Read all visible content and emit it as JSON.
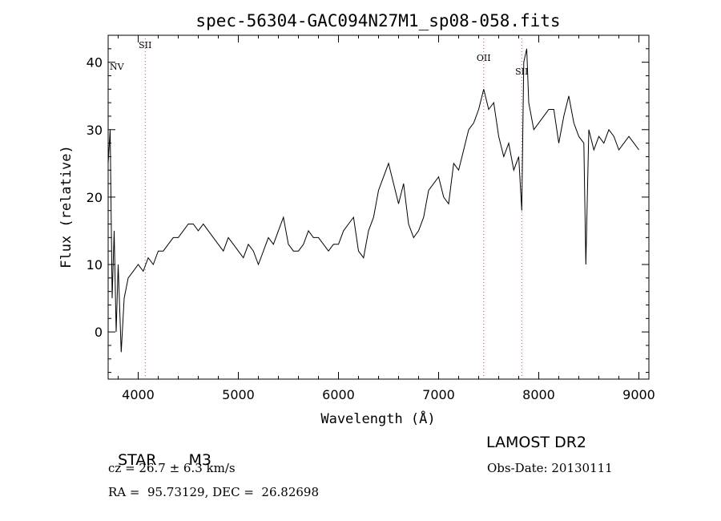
{
  "chart_data": {
    "type": "line",
    "title": "spec-56304-GAC094N27M1_sp08-058.fits",
    "xlabel": "Wavelength (Å)",
    "ylabel": "Flux (relative)",
    "xlim": [
      3700,
      9100
    ],
    "ylim": [
      -7,
      44
    ],
    "xticks": [
      4000,
      5000,
      6000,
      7000,
      8000,
      9000
    ],
    "yticks": [
      0,
      10,
      20,
      30,
      40
    ],
    "grid": false,
    "series": [
      {
        "color": "#000000",
        "x": [
          3700,
          3720,
          3740,
          3760,
          3780,
          3800,
          3830,
          3860,
          3900,
          3950,
          4000,
          4050,
          4100,
          4150,
          4200,
          4250,
          4300,
          4350,
          4400,
          4450,
          4500,
          4550,
          4600,
          4650,
          4700,
          4750,
          4800,
          4850,
          4900,
          4950,
          5000,
          5050,
          5100,
          5150,
          5200,
          5250,
          5300,
          5350,
          5400,
          5450,
          5500,
          5550,
          5600,
          5650,
          5700,
          5750,
          5800,
          5850,
          5900,
          5950,
          6000,
          6050,
          6100,
          6150,
          6200,
          6250,
          6300,
          6350,
          6400,
          6450,
          6500,
          6550,
          6600,
          6650,
          6700,
          6750,
          6800,
          6850,
          6900,
          6950,
          7000,
          7050,
          7100,
          7150,
          7200,
          7250,
          7300,
          7350,
          7400,
          7450,
          7500,
          7550,
          7600,
          7650,
          7700,
          7750,
          7800,
          7830,
          7850,
          7880,
          7900,
          7950,
          8000,
          8050,
          8100,
          8150,
          8200,
          8250,
          8300,
          8350,
          8400,
          8450,
          8470,
          8500,
          8550,
          8600,
          8650,
          8700,
          8750,
          8800,
          8850,
          8900,
          8950,
          9000
        ],
        "y": [
          25,
          30,
          5,
          15,
          0,
          10,
          -3,
          5,
          8,
          9,
          10,
          9,
          11,
          10,
          12,
          12,
          13,
          14,
          14,
          15,
          16,
          16,
          15,
          16,
          15,
          14,
          13,
          12,
          14,
          13,
          12,
          11,
          13,
          12,
          10,
          12,
          14,
          13,
          15,
          17,
          13,
          12,
          12,
          13,
          15,
          14,
          14,
          13,
          12,
          13,
          13,
          15,
          16,
          17,
          12,
          11,
          15,
          17,
          21,
          23,
          25,
          22,
          19,
          22,
          16,
          14,
          15,
          17,
          21,
          22,
          23,
          20,
          19,
          25,
          24,
          27,
          30,
          31,
          33,
          36,
          33,
          34,
          29,
          26,
          28,
          24,
          26,
          18,
          40,
          42,
          34,
          30,
          31,
          32,
          33,
          33,
          28,
          32,
          35,
          31,
          29,
          28,
          10,
          30,
          27,
          29,
          28,
          30,
          29,
          27,
          28,
          29,
          28,
          27
        ]
      }
    ],
    "line_markers": [
      {
        "label": "NV",
        "x": 3700,
        "label_y": 38.9,
        "shows_line": false
      },
      {
        "label": "SII",
        "x": 4070,
        "label_y": 42.1,
        "shows_line": true
      },
      {
        "label": "OII",
        "x": 7450,
        "label_y": 40.2,
        "shows_line": true
      },
      {
        "label": "SII",
        "x": 7830,
        "label_y": 38.2,
        "shows_line": true
      }
    ]
  },
  "info": {
    "object_class": "STAR",
    "subclass": "M3",
    "survey": "LAMOST DR2",
    "redshift_line": "cz = 26.7 ± 6.3 km/s",
    "obs_date_line": "Obs-Date: 20130111",
    "coords_line": "RA =  95.73129, DEC =  26.82698"
  },
  "colors": {
    "spectrum": "#000000",
    "marker_lines": "#e04040"
  }
}
